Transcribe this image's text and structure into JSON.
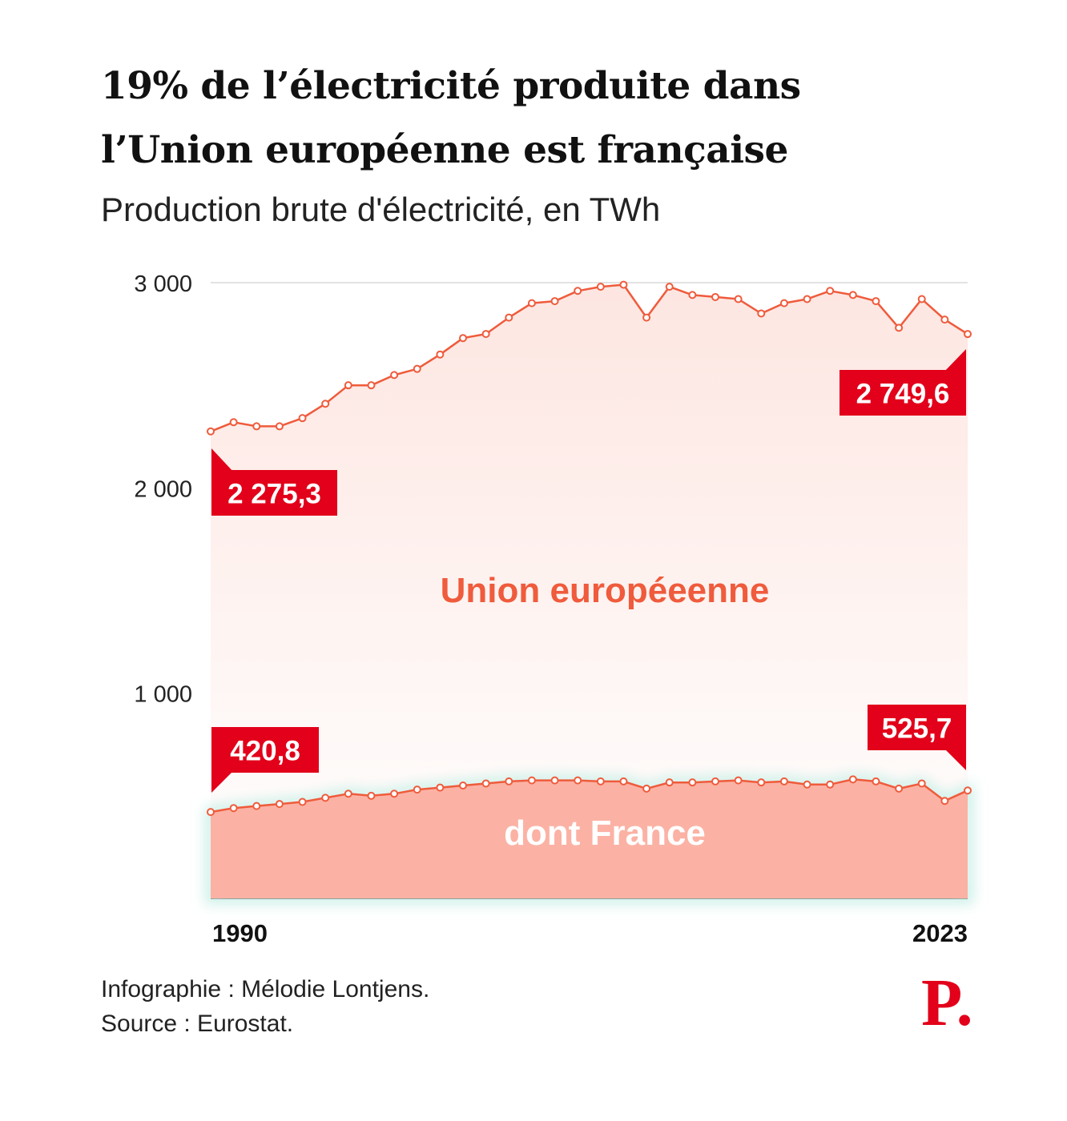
{
  "title_line1": "19% de l’électricité produite dans",
  "title_line2": "l’Union européenne est française",
  "subtitle": "Production brute d'électricité, en TWh",
  "credit": "Infographie : Mélodie Lontjens.",
  "source": "Source : Eurostat.",
  "logo": "P.",
  "colors": {
    "eu_line": "#ef5b3c",
    "eu_fill_top": "#fde6e1",
    "france_fill": "#fbb2a4",
    "label_bg": "#e2001a",
    "label_text": "#ffffff",
    "grid": "#d9d9d9",
    "glow": "#c9efe6"
  },
  "chart_data": {
    "type": "area",
    "x": [
      1990,
      1991,
      1992,
      1993,
      1994,
      1995,
      1996,
      1997,
      1998,
      1999,
      2000,
      2001,
      2002,
      2003,
      2004,
      2005,
      2006,
      2007,
      2008,
      2009,
      2010,
      2011,
      2012,
      2013,
      2014,
      2015,
      2016,
      2017,
      2018,
      2019,
      2020,
      2021,
      2022,
      2023
    ],
    "series": [
      {
        "name": "Union européeenne",
        "values": [
          2275.3,
          2320,
          2300,
          2300,
          2340,
          2410,
          2500,
          2500,
          2550,
          2580,
          2650,
          2730,
          2750,
          2830,
          2900,
          2910,
          2960,
          2980,
          2990,
          2830,
          2980,
          2940,
          2930,
          2920,
          2850,
          2900,
          2920,
          2960,
          2940,
          2910,
          2780,
          2920,
          2820,
          2749.6
        ]
      },
      {
        "name": "dont France",
        "values": [
          420.8,
          440,
          450,
          460,
          470,
          490,
          510,
          500,
          510,
          530,
          540,
          550,
          560,
          570,
          575,
          575,
          575,
          570,
          570,
          535,
          565,
          565,
          570,
          575,
          565,
          570,
          555,
          555,
          580,
          570,
          535,
          560,
          475,
          525.7
        ]
      }
    ],
    "xlabel": "",
    "ylabel": "",
    "ylim": [
      0,
      3000
    ],
    "yticks": [
      1000,
      2000,
      3000
    ],
    "ytick_labels": [
      "1 000",
      "2 000",
      "3 000"
    ],
    "xtick_labels": [
      {
        "year": 1990,
        "label": "1990"
      },
      {
        "year": 2023,
        "label": "2023"
      }
    ],
    "annotations": {
      "eu_start": "2 275,3",
      "eu_end": "2 749,6",
      "fr_start": "420,8",
      "fr_end": "525,7"
    },
    "area_labels": {
      "eu": "Union européeenne",
      "fr": "dont France"
    },
    "grid": true,
    "legend": "none"
  }
}
